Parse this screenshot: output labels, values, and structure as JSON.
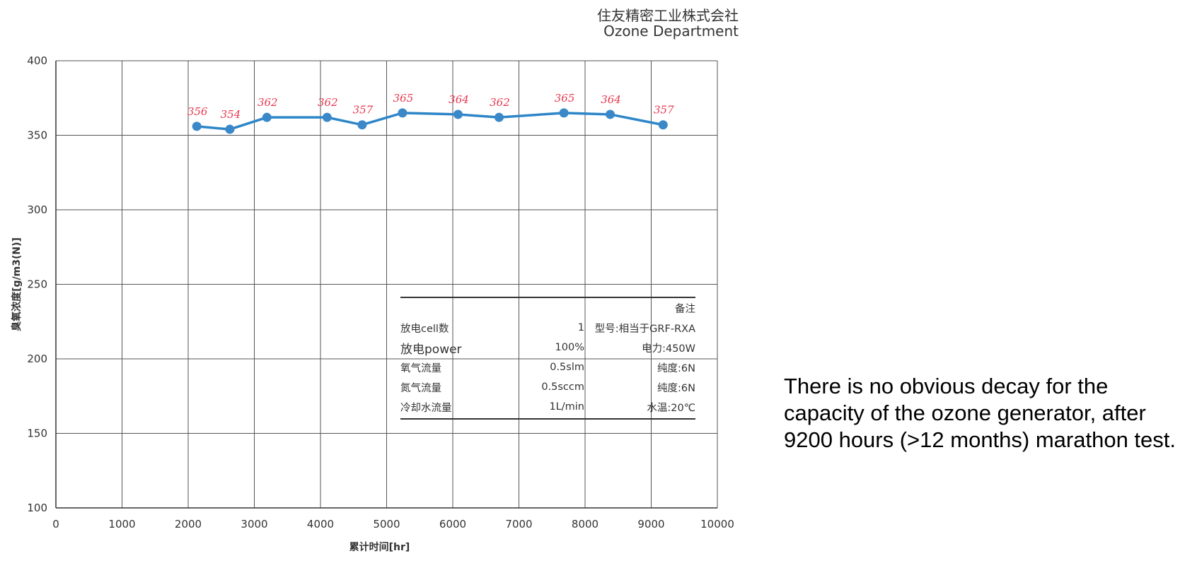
{
  "header": {
    "company": "住友精密工业株式会社",
    "department": "Ozone Department"
  },
  "note": "There is no obvious decay for the capacity of the ozone generator, after 9200 hours (>12 months) marathon test.",
  "conditions_table": {
    "header_right": "备注",
    "rows": [
      {
        "label": "放电cell数",
        "value": "1",
        "remark": "型号:相当于GRF-RXA"
      },
      {
        "label": "放电power",
        "value": "100%",
        "remark": "电力:450W"
      },
      {
        "label": "氧气流量",
        "value": "0.5slm",
        "remark": "纯度:6N"
      },
      {
        "label": "氮气流量",
        "value": "0.5sccm",
        "remark": "纯度:6N"
      },
      {
        "label": "冷却水流量",
        "value": "1L/min",
        "remark": "水温:20℃"
      }
    ]
  },
  "chart_data": {
    "type": "line",
    "title": "",
    "xlabel": "累计时间[hr]",
    "ylabel": "臭氧浓度[g/m3(N)]",
    "xlim": [
      0,
      10000
    ],
    "ylim": [
      100,
      400
    ],
    "xticks": [
      0,
      1000,
      2000,
      3000,
      4000,
      5000,
      6000,
      7000,
      8000,
      9000,
      10000
    ],
    "yticks": [
      100,
      150,
      200,
      250,
      300,
      350,
      400
    ],
    "grid": true,
    "series": [
      {
        "x": [
          2130,
          2630,
          3190,
          4100,
          4630,
          5240,
          6080,
          6700,
          7680,
          8380,
          9180
        ],
        "y": [
          356,
          354,
          362,
          362,
          357,
          365,
          364,
          362,
          365,
          364,
          357
        ],
        "labels": [
          "356",
          "354",
          "362",
          "362",
          "357",
          "365",
          "364",
          "362",
          "365",
          "364",
          "357"
        ]
      }
    ],
    "colors": {
      "line": "#2e86c8",
      "marker": "#3b88c9",
      "labels": "#e8384f",
      "grid": "#555555"
    }
  }
}
